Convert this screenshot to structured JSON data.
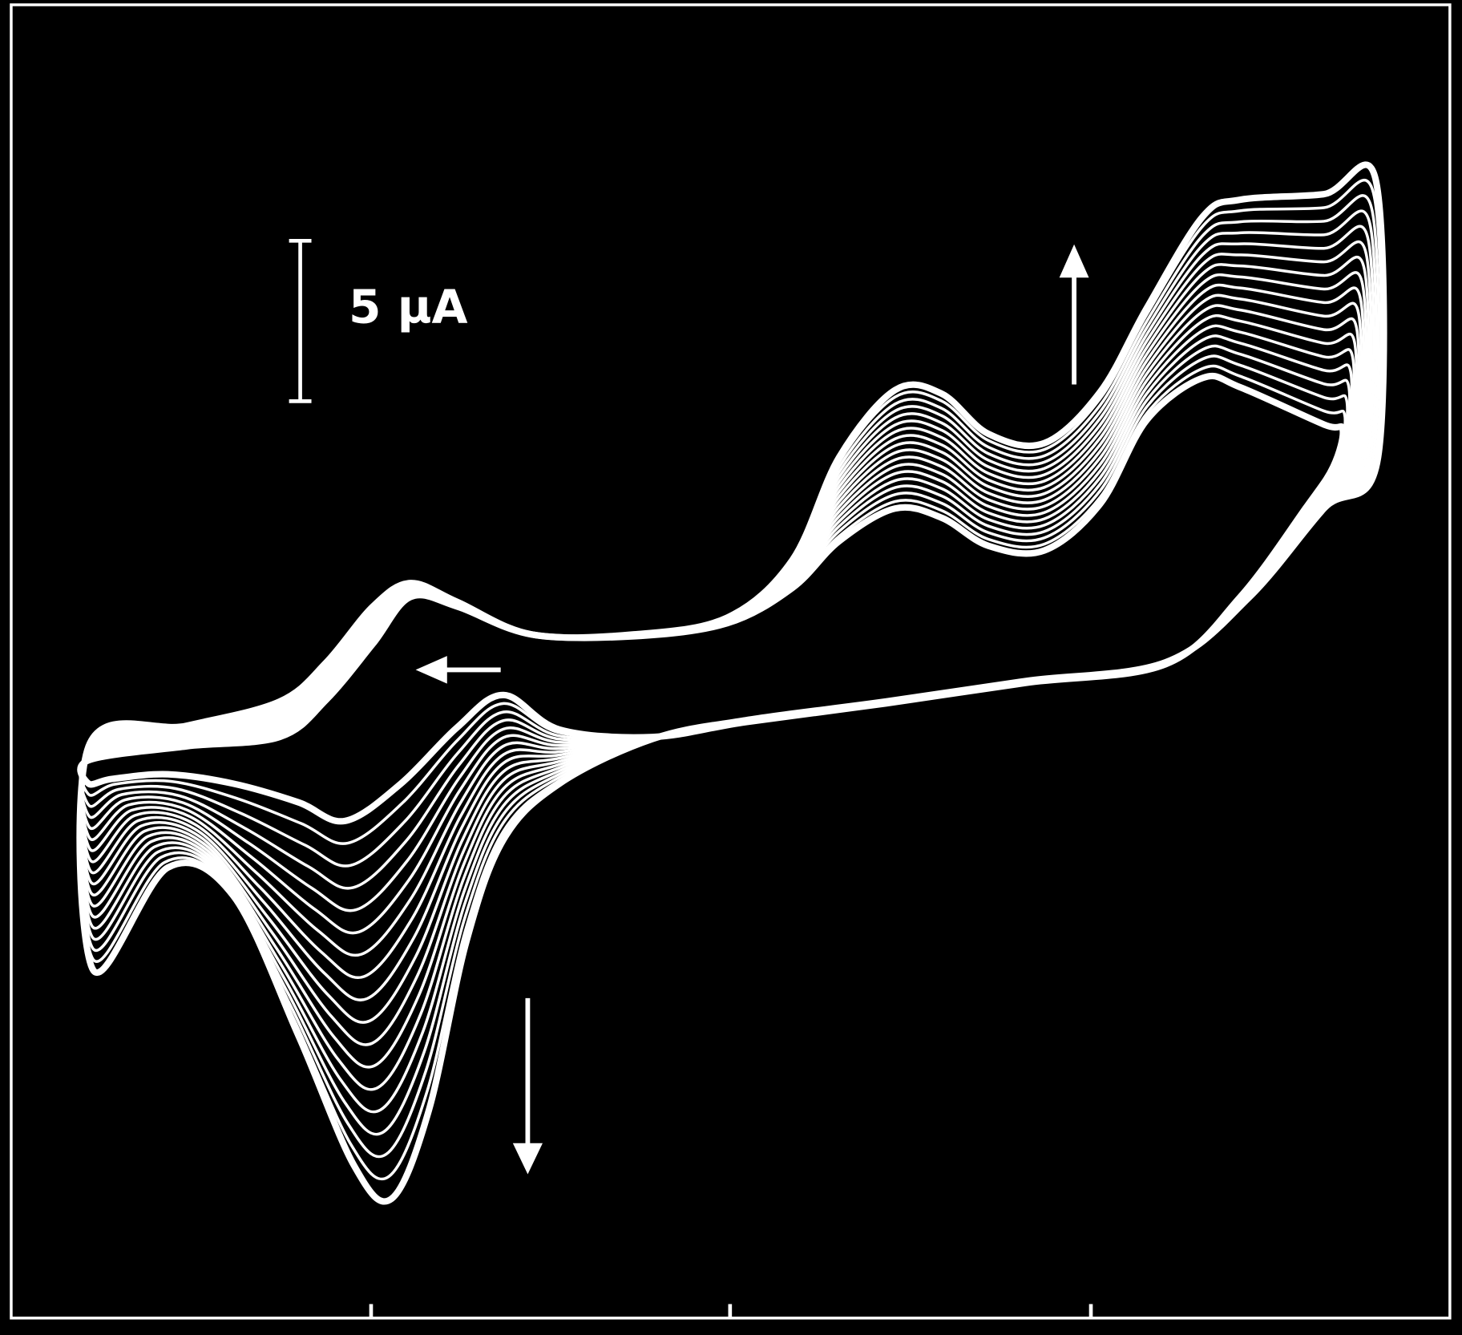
{
  "chart_data": {
    "type": "line",
    "annotations": [
      "5 µA"
    ]
  }
}
